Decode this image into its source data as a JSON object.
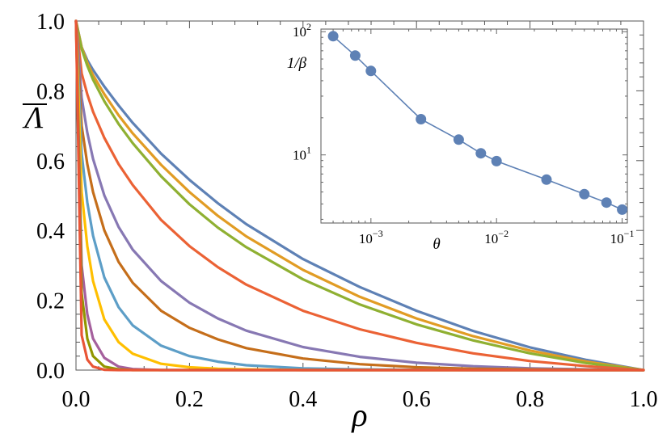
{
  "chart_data": [
    {
      "type": "line",
      "title": "",
      "xlabel": "ρ",
      "ylabel": "Λ",
      "ylabel_overline": true,
      "xlim": [
        0,
        1
      ],
      "ylim": [
        0,
        1
      ],
      "x_ticks": [
        "0.0",
        "0.2",
        "0.4",
        "0.6",
        "0.8",
        "1.0"
      ],
      "y_ticks": [
        "0.0",
        "0.2",
        "0.4",
        "0.6",
        "0.8",
        "1.0"
      ],
      "grid": false,
      "x": [
        0,
        0.01,
        0.02,
        0.03,
        0.05,
        0.075,
        0.1,
        0.15,
        0.2,
        0.25,
        0.3,
        0.4,
        0.5,
        0.6,
        0.7,
        0.8,
        0.9,
        1.0
      ],
      "series": [
        {
          "color": "#5E81B5",
          "values": [
            1.0,
            0.925,
            0.888,
            0.86,
            0.812,
            0.758,
            0.708,
            0.62,
            0.545,
            0.478,
            0.418,
            0.318,
            0.238,
            0.17,
            0.112,
            0.065,
            0.029,
            0.0
          ]
        },
        {
          "color": "#E19C24",
          "values": [
            1.0,
            0.925,
            0.88,
            0.845,
            0.79,
            0.73,
            0.678,
            0.588,
            0.51,
            0.442,
            0.383,
            0.287,
            0.21,
            0.148,
            0.097,
            0.056,
            0.024,
            0.0
          ]
        },
        {
          "color": "#8FB032",
          "values": [
            1.0,
            0.92,
            0.872,
            0.832,
            0.77,
            0.705,
            0.65,
            0.555,
            0.475,
            0.408,
            0.352,
            0.26,
            0.188,
            0.131,
            0.085,
            0.048,
            0.02,
            0.0
          ]
        },
        {
          "color": "#EB6235",
          "values": [
            1.0,
            0.85,
            0.79,
            0.74,
            0.665,
            0.59,
            0.53,
            0.43,
            0.355,
            0.295,
            0.245,
            0.17,
            0.117,
            0.078,
            0.048,
            0.026,
            0.011,
            0.0
          ]
        },
        {
          "color": "#8778B3",
          "values": [
            1.0,
            0.78,
            0.68,
            0.605,
            0.5,
            0.41,
            0.345,
            0.255,
            0.193,
            0.148,
            0.113,
            0.066,
            0.038,
            0.021,
            0.011,
            0.005,
            0.002,
            0.0
          ]
        },
        {
          "color": "#C56E1A",
          "values": [
            1.0,
            0.7,
            0.59,
            0.51,
            0.4,
            0.31,
            0.25,
            0.17,
            0.121,
            0.088,
            0.063,
            0.033,
            0.017,
            0.008,
            0.004,
            0.002,
            0.001,
            0.0
          ]
        },
        {
          "color": "#5D9EC7",
          "values": [
            1.0,
            0.62,
            0.48,
            0.385,
            0.265,
            0.18,
            0.128,
            0.07,
            0.04,
            0.024,
            0.014,
            0.005,
            0.002,
            0.001,
            0.0,
            0.0,
            0.0,
            0.0
          ]
        },
        {
          "color": "#FFBF00",
          "values": [
            1.0,
            0.51,
            0.355,
            0.255,
            0.145,
            0.08,
            0.047,
            0.018,
            0.008,
            0.004,
            0.002,
            0.0,
            0.0,
            0.0,
            0.0,
            0.0,
            0.0,
            0.0
          ]
        },
        {
          "color": "#A5609D",
          "values": [
            1.0,
            0.3,
            0.16,
            0.09,
            0.035,
            0.01,
            0.003,
            0.0,
            0.0,
            0.0,
            0.0,
            0.0,
            0.0,
            0.0,
            0.0,
            0.0,
            0.0,
            0.0
          ]
        },
        {
          "color": "#929600",
          "values": [
            1.0,
            0.22,
            0.09,
            0.04,
            0.01,
            0.002,
            0.0,
            0.0,
            0.0,
            0.0,
            0.0,
            0.0,
            0.0,
            0.0,
            0.0,
            0.0,
            0.0,
            0.0
          ]
        },
        {
          "color": "#E95536",
          "values": [
            1.0,
            0.1,
            0.03,
            0.01,
            0.001,
            0.0,
            0.0,
            0.0,
            0.0,
            0.0,
            0.0,
            0.0,
            0.0,
            0.0,
            0.0,
            0.0,
            0.0,
            0.0
          ]
        }
      ]
    },
    {
      "type": "line",
      "title": "",
      "xlabel": "θ",
      "ylabel": "1/β",
      "x_scale": "log",
      "y_scale": "log",
      "xlim": [
        0.0004,
        0.11
      ],
      "ylim": [
        2.8,
        105
      ],
      "x_ticks": [
        {
          "base": "10",
          "exp": "−3",
          "value": 0.001
        },
        {
          "base": "10",
          "exp": "−2",
          "value": 0.01
        },
        {
          "base": "10",
          "exp": "−1",
          "value": 0.1
        }
      ],
      "y_ticks": [
        {
          "base": "10",
          "exp": "1",
          "value": 10
        },
        {
          "base": "10",
          "exp": "2",
          "value": 100
        }
      ],
      "markers": true,
      "series": [
        {
          "color": "#5E81B5",
          "x": [
            0.0005,
            0.00075,
            0.001,
            0.0025,
            0.005,
            0.0075,
            0.01,
            0.025,
            0.05,
            0.075,
            0.1
          ],
          "values": [
            92,
            64,
            48,
            19.5,
            13.3,
            10.3,
            8.9,
            6.3,
            4.8,
            4.1,
            3.6
          ]
        }
      ]
    }
  ]
}
